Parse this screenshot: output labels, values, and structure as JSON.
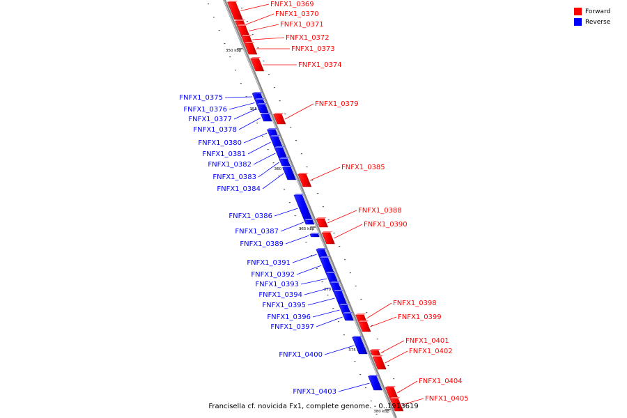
{
  "legend": {
    "forward": {
      "label": "Forward",
      "color": "#ff0000"
    },
    "reverse": {
      "label": "Reverse",
      "color": "#0000ff"
    }
  },
  "caption": "Francisella cf. novicida Fx1, complete genome. - 0..1913619",
  "scale_labels": [
    "350 kbp",
    "355 kbp",
    "360 kbp",
    "365 kbp",
    "370 kbp",
    "375 kbp",
    "380 kbp"
  ],
  "forward_genes": [
    "FNFX1_0369",
    "FNFX1_0370",
    "FNFX1_0371",
    "FNFX1_0372",
    "FNFX1_0373",
    "FNFX1_0374",
    "FNFX1_0379",
    "FNFX1_0385",
    "FNFX1_0388",
    "FNFX1_0390",
    "FNFX1_0398",
    "FNFX1_0399",
    "FNFX1_0401",
    "FNFX1_0402",
    "FNFX1_0404",
    "FNFX1_0405"
  ],
  "reverse_genes": [
    "FNFX1_0375",
    "FNFX1_0376",
    "FNFX1_0377",
    "FNFX1_0378",
    "FNFX1_0380",
    "FNFX1_0381",
    "FNFX1_0382",
    "FNFX1_0383",
    "FNFX1_0384",
    "FNFX1_0386",
    "FNFX1_0387",
    "FNFX1_0389",
    "FNFX1_0391",
    "FNFX1_0392",
    "FNFX1_0393",
    "FNFX1_0394",
    "FNFX1_0395",
    "FNFX1_0396",
    "FNFX1_0397",
    "FNFX1_0400",
    "FNFX1_0403"
  ]
}
